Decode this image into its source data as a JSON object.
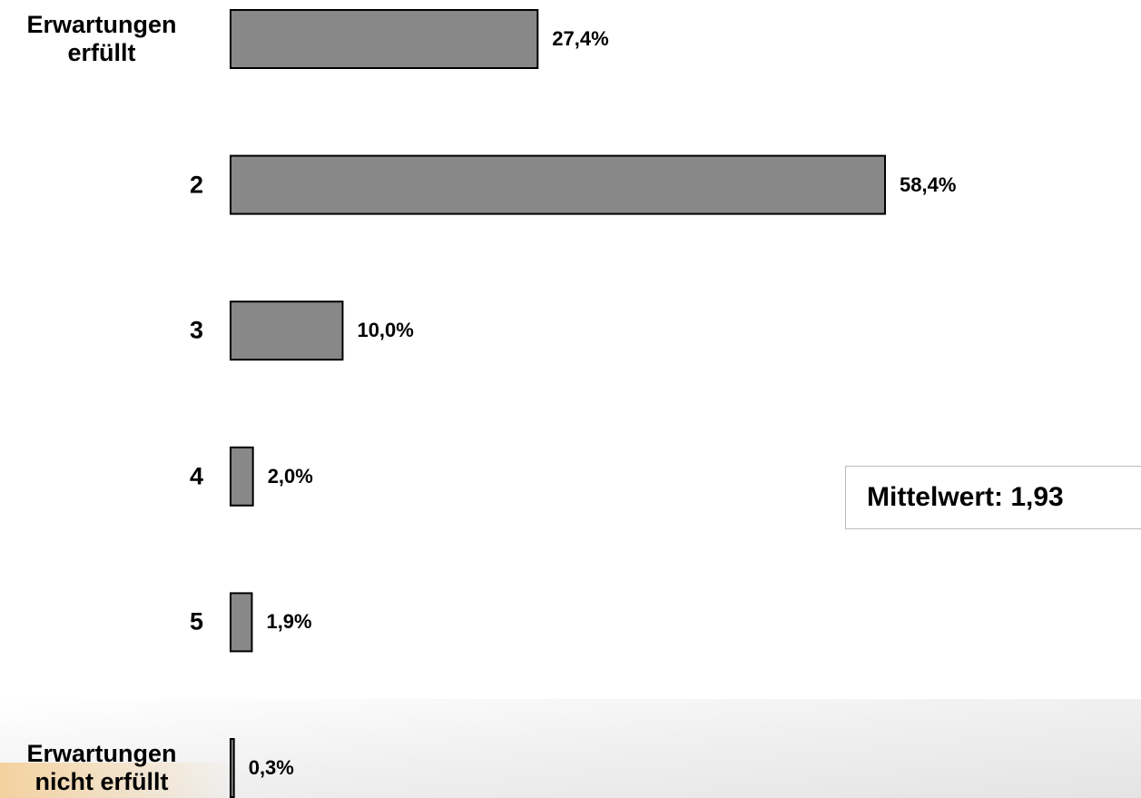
{
  "chart_data": {
    "type": "bar",
    "categories": [
      "Erwartungen erfüllt",
      "2",
      "3",
      "4",
      "5",
      "Erwartungen nicht erfüllt"
    ],
    "values": [
      27.4,
      58.4,
      10.0,
      2.0,
      1.9,
      0.3
    ],
    "value_labels": [
      "27,4%",
      "58,4%",
      "10,0%",
      "2,0%",
      "1,9%",
      "0,3%"
    ],
    "color": "#888888",
    "annotation": "Mittelwert: 1,93"
  }
}
